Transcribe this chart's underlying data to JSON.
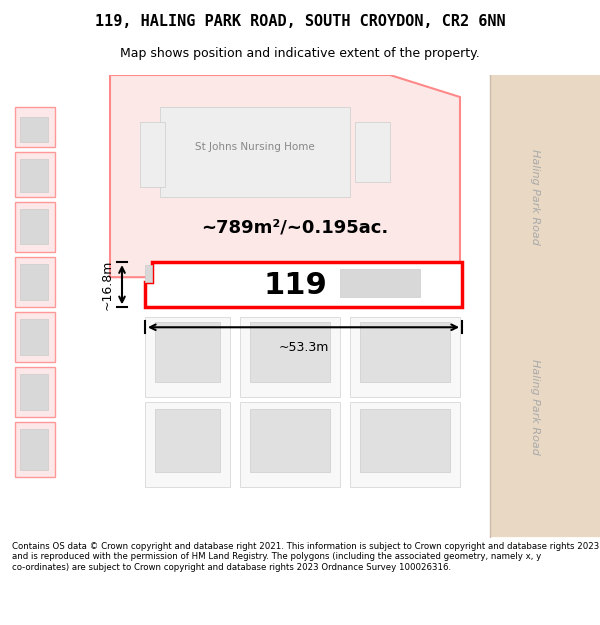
{
  "title_line1": "119, HALING PARK ROAD, SOUTH CROYDON, CR2 6NN",
  "title_line2": "Map shows position and indicative extent of the property.",
  "footer_text": "Contains OS data © Crown copyright and database right 2021. This information is subject to Crown copyright and database rights 2023 and is reproduced with the permission of HM Land Registry. The polygons (including the associated geometry, namely x, y co-ordinates) are subject to Crown copyright and database rights 2023 Ordnance Survey 100026316.",
  "bg_color": "#f5f0eb",
  "map_bg": "#ffffff",
  "road_color": "#e8d8c8",
  "street_label": "Haling Park Road",
  "property_label": "119",
  "area_label": "~789m²/~0.195ac.",
  "width_label": "~53.3m",
  "height_label": "~16.8m",
  "nursing_home_label": "St Johns Nursing Home",
  "highlight_fill": "#ffeeee",
  "highlight_stroke": "#ff0000",
  "plot_fill": "#ffffff",
  "building_fill": "#e0e0e0",
  "other_plot_fill": "#fce8e8",
  "other_plot_stroke": "#ff6666"
}
